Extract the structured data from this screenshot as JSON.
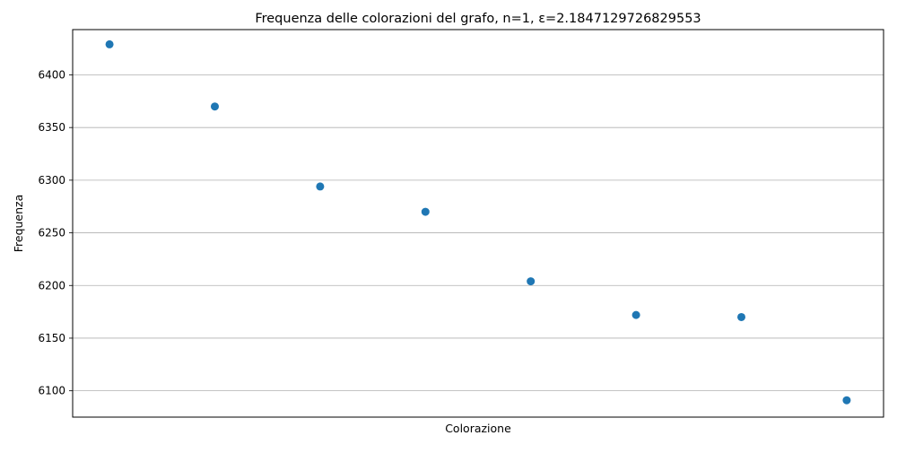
{
  "chart_data": {
    "type": "scatter",
    "title": "Frequenza delle colorazioni del grafo, n=1, ε=2.1847129726829553",
    "xlabel": "Colorazione",
    "ylabel": "Frequenza",
    "x": [
      1,
      2,
      3,
      4,
      5,
      6,
      7,
      8
    ],
    "values": [
      6429,
      6370,
      6294,
      6270,
      6204,
      6172,
      6170,
      6091
    ],
    "ylim": [
      6075,
      6443
    ],
    "y_ticks": [
      6100,
      6150,
      6200,
      6250,
      6300,
      6350,
      6400
    ],
    "x_ticks_shown": false,
    "grid": "horizontal",
    "marker_color": "#1f77b4"
  }
}
